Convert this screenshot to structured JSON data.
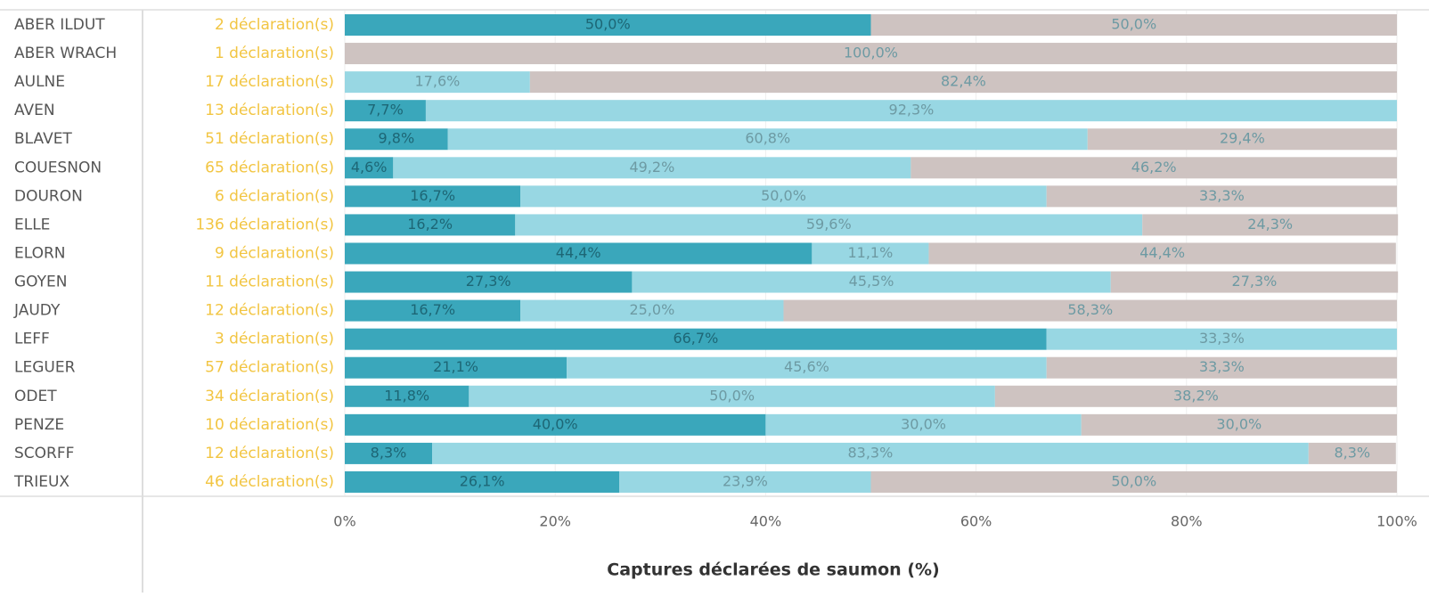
{
  "chart_data": {
    "type": "stacked-barh",
    "categories": [
      "ABER ILDUT",
      "ABER WRACH",
      "AULNE",
      "AVEN",
      "BLAVET",
      "COUESNON",
      "DOURON",
      "ELLE",
      "ELORN",
      "GOYEN",
      "JAUDY",
      "LEFF",
      "LEGUER",
      "ODET",
      "PENZE",
      "SCORFF",
      "TRIEUX"
    ],
    "row_labels": [
      "2 déclaration(s)",
      "1 déclaration(s)",
      "17 déclaration(s)",
      "13 déclaration(s)",
      "51 déclaration(s)",
      "65 déclaration(s)",
      "6 déclaration(s)",
      "136 déclaration(s)",
      "9 déclaration(s)",
      "11 déclaration(s)",
      "12 déclaration(s)",
      "3 déclaration(s)",
      "57 déclaration(s)",
      "34 déclaration(s)",
      "10 déclaration(s)",
      "12 déclaration(s)",
      "46 déclaration(s)"
    ],
    "series": [
      {
        "color": "#3aa7bb",
        "values": [
          50.0,
          0,
          0,
          7.7,
          9.8,
          4.6,
          16.7,
          16.2,
          44.4,
          27.3,
          16.7,
          66.7,
          21.1,
          11.8,
          40.0,
          8.3,
          26.1
        ],
        "value_labels": [
          "50,0%",
          null,
          null,
          "7,7%",
          "9,8%",
          "4,6%",
          "16,7%",
          "16,2%",
          "44,4%",
          "27,3%",
          "16,7%",
          "66,7%",
          "21,1%",
          "11,8%",
          "40,0%",
          "8,3%",
          "26,1%"
        ]
      },
      {
        "color": "#98d7e3",
        "values": [
          0,
          0,
          17.6,
          92.3,
          60.8,
          49.2,
          50.0,
          59.6,
          11.1,
          45.5,
          25.0,
          33.3,
          45.6,
          50.0,
          30.0,
          83.3,
          23.9
        ],
        "value_labels": [
          null,
          null,
          "17,6%",
          "92,3%",
          "60,8%",
          "49,2%",
          "50,0%",
          "59,6%",
          "11,1%",
          "45,5%",
          "25,0%",
          "33,3%",
          "45,6%",
          "50,0%",
          "30,0%",
          "83,3%",
          "23,9%"
        ]
      },
      {
        "color": "#cec3c1",
        "values": [
          50.0,
          100.0,
          82.4,
          0,
          29.4,
          46.2,
          33.3,
          24.3,
          44.4,
          27.3,
          58.3,
          0,
          33.3,
          38.2,
          30.0,
          8.3,
          50.0
        ],
        "value_labels": [
          "50,0%",
          "100,0%",
          "82,4%",
          null,
          "29,4%",
          "46,2%",
          "33,3%",
          "24,3%",
          "44,4%",
          "27,3%",
          "58,3%",
          null,
          "33,3%",
          "38,2%",
          "30,0%",
          "8,3%",
          "50,0%"
        ]
      }
    ],
    "xlabel": "Captures déclarées de saumon (%)",
    "xlim": [
      0,
      100
    ],
    "xticks": [
      {
        "value": 0,
        "label": "0%"
      },
      {
        "value": 20,
        "label": "20%"
      },
      {
        "value": 40,
        "label": "40%"
      },
      {
        "value": 60,
        "label": "60%"
      },
      {
        "value": 80,
        "label": "80%"
      },
      {
        "value": 100,
        "label": "100%"
      }
    ],
    "grid": true
  }
}
